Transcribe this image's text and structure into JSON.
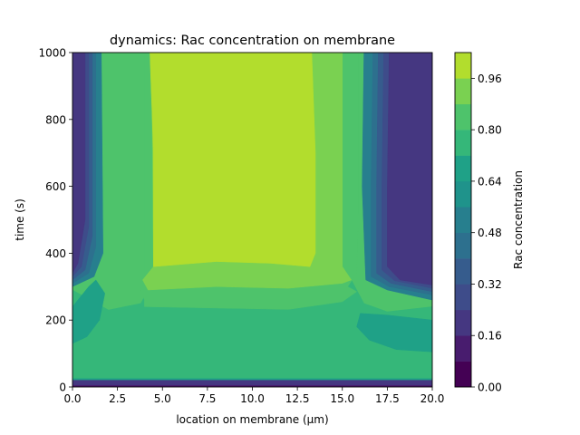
{
  "chart_data": {
    "type": "heatmap",
    "subtype": "filled-contour",
    "title": "dynamics: Rac concentration on membrane",
    "xlabel": "location on membrane (μm)",
    "ylabel": "time (s)",
    "xlim": [
      0,
      20
    ],
    "ylim": [
      0,
      1000
    ],
    "x_ticks": [
      "0.0",
      "2.5",
      "5.0",
      "7.5",
      "10.0",
      "12.5",
      "15.0",
      "17.5",
      "20.0"
    ],
    "y_ticks": [
      "0",
      "200",
      "400",
      "600",
      "800",
      "1000"
    ],
    "colorbar": {
      "label": "Rac concentration",
      "range": [
        0,
        1.04
      ],
      "ticks": [
        "0.00",
        "0.16",
        "0.32",
        "0.48",
        "0.64",
        "0.80",
        "0.96"
      ],
      "levels": [
        0,
        0.08,
        0.16,
        0.24,
        0.32,
        0.4,
        0.48,
        0.56,
        0.64,
        0.72,
        0.8,
        0.88,
        0.96,
        1.04
      ],
      "colors": [
        "#440154",
        "#481c6e",
        "#453781",
        "#3e4c8a",
        "#365c8d",
        "#2d708e",
        "#277f8e",
        "#1f938b",
        "#1fa187",
        "#35b779",
        "#4ec36b",
        "#7ad151",
        "#b2dd2d",
        "#e5e419"
      ]
    },
    "contours": [
      {
        "level": 0.76,
        "polygons": [
          [
            [
              0,
              20
            ],
            [
              20,
              20
            ],
            [
              20,
              240
            ],
            [
              17.5,
              225
            ],
            [
              16.2,
              250
            ],
            [
              15.5,
              320
            ],
            [
              4.5,
              320
            ],
            [
              3.8,
              250
            ],
            [
              2,
              230
            ],
            [
              0,
              290
            ]
          ]
        ]
      },
      {
        "level": 0.84,
        "polygons": [
          [
            [
              4,
              240
            ],
            [
              12,
              232
            ],
            [
              15,
              255
            ],
            [
              15.8,
              285
            ],
            [
              15.3,
              300
            ],
            [
              15.8,
              340
            ],
            [
              15.9,
              520
            ],
            [
              15.9,
              1000
            ],
            [
              4.0,
              1000
            ],
            [
              4.0,
              520
            ],
            [
              4.0,
              340
            ],
            [
              3.8,
              290
            ],
            [
              4,
              260
            ]
          ]
        ]
      },
      {
        "level": 0.92,
        "polygons": [
          [
            [
              4.2,
              290
            ],
            [
              8,
              300
            ],
            [
              12,
              295
            ],
            [
              15,
              310
            ],
            [
              15.5,
              320
            ],
            [
              15,
              360
            ],
            [
              15,
              1000
            ],
            [
              4.4,
              1000
            ],
            [
              4.5,
              360
            ],
            [
              3.9,
              320
            ]
          ]
        ]
      },
      {
        "level": 1.0,
        "polygons": [
          [
            [
              4.5,
              360
            ],
            [
              8,
              375
            ],
            [
              11,
              370
            ],
            [
              13.2,
              360
            ],
            [
              13.5,
              400
            ],
            [
              13.5,
              700
            ],
            [
              13.3,
              1000
            ],
            [
              4.3,
              1000
            ],
            [
              4.5,
              700
            ],
            [
              4.5,
              400
            ]
          ]
        ]
      },
      {
        "level": 0.68,
        "polygons": [
          [
            [
              16,
              220
            ],
            [
              17.5,
              215
            ],
            [
              20,
              200
            ],
            [
              20,
              105
            ],
            [
              18,
              112
            ],
            [
              16.5,
              140
            ],
            [
              15.8,
              180
            ]
          ],
          [
            [
              20,
              20
            ],
            [
              0,
              20
            ],
            [
              0,
              25
            ],
            [
              20,
              25
            ]
          ]
        ]
      },
      {
        "level": 0.64,
        "polygons": [
          [
            [
              0,
              130
            ],
            [
              0,
              240
            ],
            [
              0.9,
              300
            ],
            [
              1.3,
              320
            ],
            [
              1.8,
              280
            ],
            [
              1.5,
              200
            ],
            [
              0.8,
              150
            ]
          ]
        ]
      },
      {
        "level": 0.52,
        "polygons": [
          [
            [
              0,
              300
            ],
            [
              0,
              1000
            ],
            [
              1.6,
              1000
            ],
            [
              1.7,
              400
            ],
            [
              1.2,
              330
            ]
          ],
          [
            [
              20,
              260
            ],
            [
              17.5,
              290
            ],
            [
              16.3,
              320
            ],
            [
              16.1,
              600
            ],
            [
              16.2,
              1000
            ],
            [
              20,
              1000
            ]
          ]
        ]
      },
      {
        "level": 0.44,
        "polygons": [
          [
            [
              0,
              310
            ],
            [
              0,
              1000
            ],
            [
              1.3,
              1000
            ],
            [
              1.3,
              420
            ],
            [
              0.9,
              340
            ]
          ],
          [
            [
              20,
              275
            ],
            [
              17.6,
              300
            ],
            [
              16.6,
              330
            ],
            [
              16.6,
              600
            ],
            [
              16.7,
              1000
            ],
            [
              20,
              1000
            ]
          ]
        ]
      },
      {
        "level": 0.36,
        "polygons": [
          [
            [
              0,
              320
            ],
            [
              0,
              1000
            ],
            [
              1.1,
              1000
            ],
            [
              1.1,
              450
            ],
            [
              0.7,
              350
            ]
          ],
          [
            [
              20,
              285
            ],
            [
              17.7,
              310
            ],
            [
              16.9,
              340
            ],
            [
              16.9,
              600
            ],
            [
              17.0,
              1000
            ],
            [
              20,
              1000
            ]
          ]
        ]
      },
      {
        "level": 0.28,
        "polygons": [
          [
            [
              0,
              330
            ],
            [
              0,
              1000
            ],
            [
              0.9,
              1000
            ],
            [
              0.9,
              480
            ],
            [
              0.5,
              360
            ]
          ],
          [
            [
              20,
              295
            ],
            [
              17.9,
              318
            ],
            [
              17.2,
              350
            ],
            [
              17.2,
              600
            ],
            [
              17.3,
              1000
            ],
            [
              20,
              1000
            ]
          ]
        ]
      },
      {
        "level": 0.2,
        "polygons": [
          [
            [
              0,
              340
            ],
            [
              0,
              1000
            ],
            [
              0.7,
              1000
            ],
            [
              0.7,
              500
            ],
            [
              0.3,
              370
            ]
          ],
          [
            [
              20,
              305
            ],
            [
              18.2,
              320
            ],
            [
              17.5,
              360
            ],
            [
              17.5,
              600
            ],
            [
              17.6,
              1000
            ],
            [
              20,
              1000
            ]
          ],
          [
            [
              0,
              5
            ],
            [
              20,
              5
            ],
            [
              20,
              20
            ],
            [
              0,
              20
            ]
          ]
        ]
      },
      {
        "level": 0.12,
        "polygons": [
          [
            [
              0,
              0
            ],
            [
              20,
              0
            ],
            [
              20,
              5
            ],
            [
              0,
              5
            ]
          ]
        ]
      }
    ]
  }
}
